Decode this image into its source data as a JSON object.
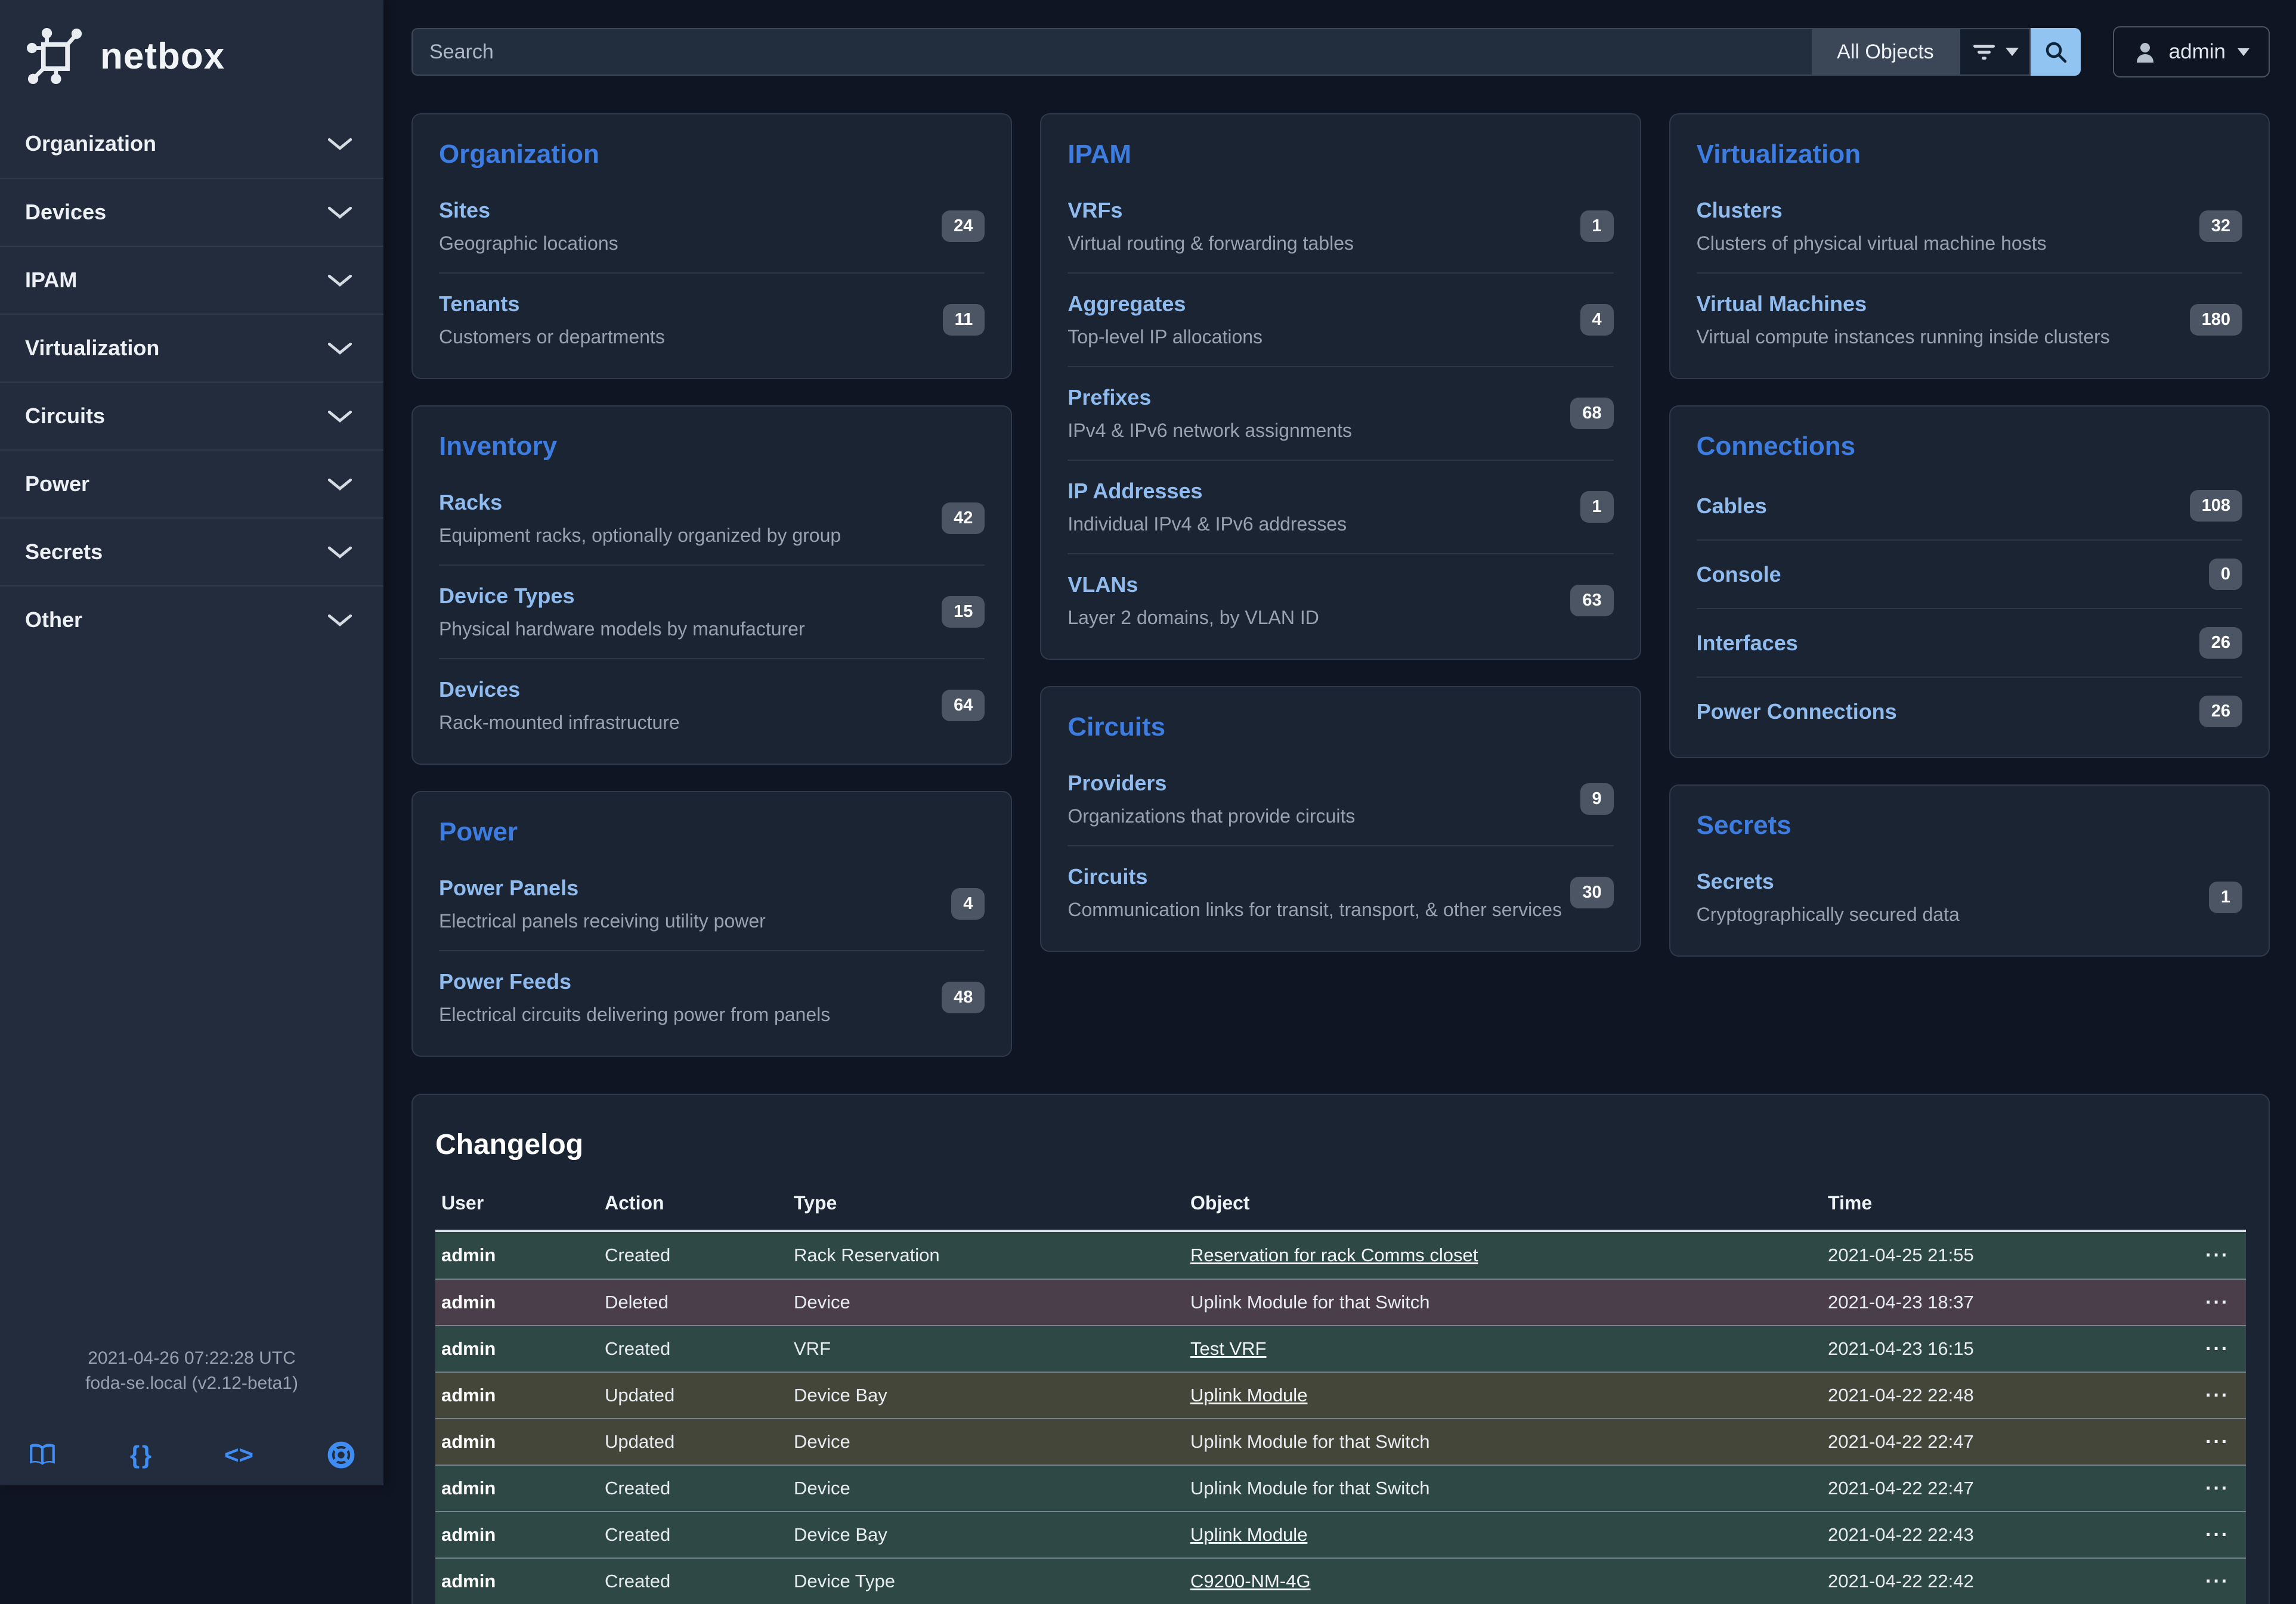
{
  "brand": {
    "name": "netbox"
  },
  "topbar": {
    "search_placeholder": "Search",
    "scope_label": "All Objects",
    "user_label": "admin"
  },
  "sidebar": {
    "items": [
      "Organization",
      "Devices",
      "IPAM",
      "Virtualization",
      "Circuits",
      "Power",
      "Secrets",
      "Other"
    ],
    "footer": {
      "timestamp": "2021-04-26 07:22:28 UTC",
      "host": "foda-se.local (v2.12-beta1)",
      "icons": [
        "docs-book-icon",
        "api-braces-icon",
        "source-code-icon",
        "help-ring-icon"
      ]
    }
  },
  "card_columns": [
    [
      {
        "title": "Organization",
        "items": [
          {
            "label": "Sites",
            "desc": "Geographic locations",
            "count": "24"
          },
          {
            "label": "Tenants",
            "desc": "Customers or departments",
            "count": "11"
          }
        ]
      },
      {
        "title": "Inventory",
        "items": [
          {
            "label": "Racks",
            "desc": "Equipment racks, optionally organized by group",
            "count": "42"
          },
          {
            "label": "Device Types",
            "desc": "Physical hardware models by manufacturer",
            "count": "15"
          },
          {
            "label": "Devices",
            "desc": "Rack-mounted infrastructure",
            "count": "64"
          }
        ]
      },
      {
        "title": "Power",
        "items": [
          {
            "label": "Power Panels",
            "desc": "Electrical panels receiving utility power",
            "count": "4"
          },
          {
            "label": "Power Feeds",
            "desc": "Electrical circuits delivering power from panels",
            "count": "48"
          }
        ]
      }
    ],
    [
      {
        "title": "IPAM",
        "items": [
          {
            "label": "VRFs",
            "desc": "Virtual routing & forwarding tables",
            "count": "1"
          },
          {
            "label": "Aggregates",
            "desc": "Top-level IP allocations",
            "count": "4"
          },
          {
            "label": "Prefixes",
            "desc": "IPv4 & IPv6 network assignments",
            "count": "68"
          },
          {
            "label": "IP Addresses",
            "desc": "Individual IPv4 & IPv6 addresses",
            "count": "1"
          },
          {
            "label": "VLANs",
            "desc": "Layer 2 domains, by VLAN ID",
            "count": "63"
          }
        ]
      },
      {
        "title": "Circuits",
        "items": [
          {
            "label": "Providers",
            "desc": "Organizations that provide circuits",
            "count": "9"
          },
          {
            "label": "Circuits",
            "desc": "Communication links for transit, transport, & other services",
            "count": "30"
          }
        ]
      }
    ],
    [
      {
        "title": "Virtualization",
        "items": [
          {
            "label": "Clusters",
            "desc": "Clusters of physical virtual machine hosts",
            "count": "32"
          },
          {
            "label": "Virtual Machines",
            "desc": "Virtual compute instances running inside clusters",
            "count": "180"
          }
        ]
      },
      {
        "title": "Connections",
        "items": [
          {
            "label": "Cables",
            "desc": "",
            "count": "108"
          },
          {
            "label": "Console",
            "desc": "",
            "count": "0"
          },
          {
            "label": "Interfaces",
            "desc": "",
            "count": "26"
          },
          {
            "label": "Power Connections",
            "desc": "",
            "count": "26"
          }
        ]
      },
      {
        "title": "Secrets",
        "items": [
          {
            "label": "Secrets",
            "desc": "Cryptographically secured data",
            "count": "1"
          }
        ]
      }
    ]
  ],
  "changelog": {
    "title": "Changelog",
    "columns": [
      "User",
      "Action",
      "Type",
      "Object",
      "Time"
    ],
    "row_action_label": "···",
    "rows": [
      {
        "user": "admin",
        "action": "Created",
        "type": "Rack Reservation",
        "object": "Reservation for rack Comms closet",
        "link": true,
        "time": "2021-04-25 21:55",
        "variant": "created"
      },
      {
        "user": "admin",
        "action": "Deleted",
        "type": "Device",
        "object": "Uplink Module for that Switch",
        "link": false,
        "time": "2021-04-23 18:37",
        "variant": "deleted"
      },
      {
        "user": "admin",
        "action": "Created",
        "type": "VRF",
        "object": "Test VRF",
        "link": true,
        "time": "2021-04-23 16:15",
        "variant": "created"
      },
      {
        "user": "admin",
        "action": "Updated",
        "type": "Device Bay",
        "object": "Uplink Module",
        "link": true,
        "time": "2021-04-22 22:48",
        "variant": "updated"
      },
      {
        "user": "admin",
        "action": "Updated",
        "type": "Device",
        "object": "Uplink Module for that Switch",
        "link": false,
        "time": "2021-04-22 22:47",
        "variant": "updated"
      },
      {
        "user": "admin",
        "action": "Created",
        "type": "Device",
        "object": "Uplink Module for that Switch",
        "link": false,
        "time": "2021-04-22 22:47",
        "variant": "created"
      },
      {
        "user": "admin",
        "action": "Created",
        "type": "Device Bay",
        "object": "Uplink Module",
        "link": true,
        "time": "2021-04-22 22:43",
        "variant": "created"
      },
      {
        "user": "admin",
        "action": "Created",
        "type": "Device Type",
        "object": "C9200-NM-4G",
        "link": true,
        "time": "2021-04-22 22:42",
        "variant": "created"
      }
    ]
  },
  "colors": {
    "sidebar_bg": "#222c3c",
    "page_bg": "#0f1522",
    "card_bg": "#1b2433",
    "card_title_blue": "#3d7de2",
    "item_link_blue": "#8fbbee",
    "badge_bg": "#4b5563",
    "search_button_blue": "#92c4f1",
    "footer_icon_blue": "#3f8cf3",
    "row_created": "#2e4845",
    "row_deleted": "#493e49",
    "row_updated": "#45463a"
  }
}
